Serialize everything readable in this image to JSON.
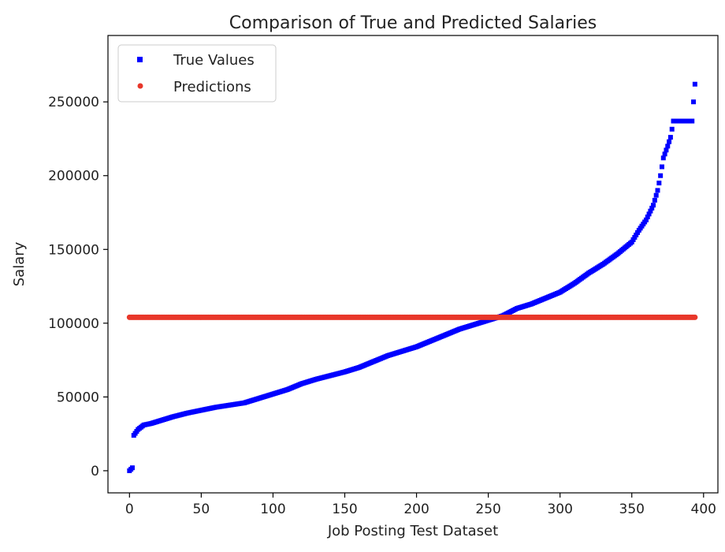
{
  "chart_data": {
    "type": "scatter",
    "title": "Comparison of True and Predicted Salaries",
    "xlabel": "Job Posting Test Dataset",
    "ylabel": "Salary",
    "xlim": [
      -15,
      410
    ],
    "ylim": [
      -15000,
      295000
    ],
    "xticks": [
      0,
      50,
      100,
      150,
      200,
      250,
      300,
      350,
      400
    ],
    "yticks": [
      0,
      50000,
      100000,
      150000,
      200000,
      250000
    ],
    "legend_position": "top-left",
    "grid": false,
    "n_points": 395,
    "series": [
      {
        "name": "True Values",
        "marker": "square",
        "color": "#0000ff",
        "anchors": [
          [
            0,
            0
          ],
          [
            2,
            2000
          ],
          [
            3,
            24000
          ],
          [
            6,
            28000
          ],
          [
            10,
            31000
          ],
          [
            15,
            32000
          ],
          [
            20,
            33500
          ],
          [
            30,
            36500
          ],
          [
            40,
            39000
          ],
          [
            50,
            41000
          ],
          [
            60,
            43000
          ],
          [
            70,
            44500
          ],
          [
            80,
            46000
          ],
          [
            90,
            49000
          ],
          [
            100,
            52000
          ],
          [
            110,
            55000
          ],
          [
            120,
            59000
          ],
          [
            130,
            62000
          ],
          [
            140,
            64500
          ],
          [
            150,
            67000
          ],
          [
            160,
            70000
          ],
          [
            170,
            74000
          ],
          [
            180,
            78000
          ],
          [
            190,
            81000
          ],
          [
            200,
            84000
          ],
          [
            210,
            88000
          ],
          [
            220,
            92000
          ],
          [
            230,
            96000
          ],
          [
            240,
            99000
          ],
          [
            250,
            102000
          ],
          [
            260,
            105000
          ],
          [
            270,
            110000
          ],
          [
            280,
            113000
          ],
          [
            290,
            117000
          ],
          [
            300,
            121000
          ],
          [
            310,
            127000
          ],
          [
            320,
            134000
          ],
          [
            330,
            140000
          ],
          [
            340,
            147000
          ],
          [
            350,
            155000
          ],
          [
            355,
            163000
          ],
          [
            360,
            170000
          ],
          [
            365,
            180000
          ],
          [
            368,
            190000
          ],
          [
            370,
            200000
          ],
          [
            372,
            212000
          ],
          [
            375,
            220000
          ],
          [
            377,
            226000
          ],
          [
            379,
            237000
          ],
          [
            392,
            237000
          ],
          [
            393,
            250000
          ],
          [
            394,
            262000
          ],
          [
            395,
            272000
          ],
          [
            396,
            278000
          ]
        ]
      },
      {
        "name": "Predictions",
        "marker": "circle",
        "color": "#e8372a",
        "value": 104000
      }
    ]
  }
}
